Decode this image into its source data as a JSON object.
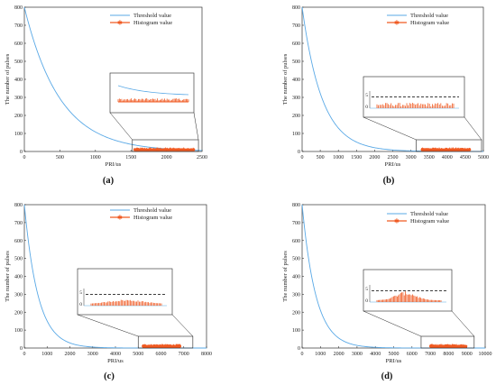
{
  "chart_data": [
    {
      "panel": "(a)",
      "type": "line",
      "xlabel": "PRI/us",
      "ylabel": "The number of pulses",
      "xlim": [
        0,
        2500
      ],
      "ylim": [
        0,
        800
      ],
      "xticks": [
        0,
        500,
        1000,
        1500,
        2000,
        2500
      ],
      "yticks": [
        0,
        100,
        200,
        300,
        400,
        500,
        600,
        700,
        800
      ],
      "legend": [
        "Threshold value",
        "Histogram value"
      ],
      "legend_position": "top-right",
      "series": [
        {
          "name": "Threshold value",
          "color": "#5aa9e6",
          "decay": 500
        },
        {
          "name": "Histogram value",
          "color": "#f05a22",
          "xrange": [
            1550,
            2400
          ],
          "value_range": [
            0,
            3
          ]
        }
      ],
      "inset": {
        "yticks": [],
        "threshold_level": null
      }
    },
    {
      "panel": "(b)",
      "type": "line",
      "xlabel": "PRI/us",
      "ylabel": "The number of pulses",
      "xlim": [
        0,
        5000
      ],
      "ylim": [
        0,
        800
      ],
      "xticks": [
        0,
        500,
        1000,
        1500,
        2000,
        2500,
        3000,
        3500,
        4000,
        4500,
        5000
      ],
      "yticks": [
        0,
        100,
        200,
        300,
        400,
        500,
        600,
        700,
        800
      ],
      "legend": [
        "Threshold value",
        "Histogram value"
      ],
      "legend_position": "top-right",
      "series": [
        {
          "name": "Threshold value",
          "color": "#5aa9e6",
          "decay": 550
        },
        {
          "name": "Histogram value",
          "color": "#f05a22",
          "xrange": [
            3300,
            4650
          ],
          "value_range": [
            0,
            3
          ]
        }
      ],
      "inset": {
        "yticks": [
          0,
          5
        ],
        "threshold_level": 4
      }
    },
    {
      "panel": "(c)",
      "type": "line",
      "xlabel": "PRI/us",
      "ylabel": "The number of pulses",
      "xlim": [
        0,
        8000
      ],
      "ylim": [
        0,
        800
      ],
      "xticks": [
        0,
        1000,
        2000,
        3000,
        4000,
        5000,
        6000,
        7000,
        8000
      ],
      "yticks": [
        0,
        100,
        200,
        300,
        400,
        500,
        600,
        700,
        800
      ],
      "legend": [
        "Threshold value",
        "Histogram value"
      ],
      "legend_position": "top-right",
      "series": [
        {
          "name": "Threshold value",
          "color": "#5aa9e6",
          "decay": 600
        },
        {
          "name": "Histogram value",
          "color": "#f05a22",
          "xrange": [
            5200,
            6850
          ],
          "value_range": [
            0,
            3
          ]
        }
      ],
      "inset": {
        "yticks": [
          0,
          5
        ],
        "threshold_level": 4
      }
    },
    {
      "panel": "(d)",
      "type": "line",
      "xlabel": "PRI/us",
      "ylabel": "The number of pulses",
      "xlim": [
        0,
        10000
      ],
      "ylim": [
        0,
        800
      ],
      "xticks": [
        0,
        1000,
        2000,
        3000,
        4000,
        5000,
        6000,
        7000,
        8000,
        9000,
        10000
      ],
      "yticks": [
        0,
        100,
        200,
        300,
        400,
        500,
        600,
        700,
        800
      ],
      "legend": [
        "Threshold value",
        "Histogram value"
      ],
      "legend_position": "top-right",
      "series": [
        {
          "name": "Threshold value",
          "color": "#5aa9e6",
          "decay": 750
        },
        {
          "name": "Histogram value",
          "color": "#f05a22",
          "xrange": [
            7000,
            9000
          ],
          "value_range": [
            0,
            5
          ]
        }
      ],
      "inset": {
        "yticks": [
          0,
          5
        ],
        "threshold_level": 4
      }
    }
  ]
}
